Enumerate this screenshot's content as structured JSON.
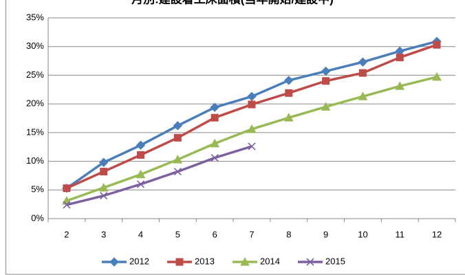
{
  "chart_data": {
    "type": "line",
    "title": "月別:建設着工床面積(当年開始/建設中)",
    "categories": [
      "2",
      "3",
      "4",
      "5",
      "6",
      "7",
      "8",
      "9",
      "10",
      "11",
      "12"
    ],
    "series": [
      {
        "name": "2012",
        "color": "#4a7ebb",
        "marker": "diamond",
        "values": [
          5.3,
          9.8,
          12.8,
          16.2,
          19.4,
          21.3,
          24.1,
          25.7,
          27.3,
          29.2,
          30.9
        ]
      },
      {
        "name": "2013",
        "color": "#be4b48",
        "marker": "square",
        "values": [
          5.3,
          8.2,
          11.1,
          14.1,
          17.6,
          19.9,
          21.9,
          24.0,
          25.4,
          28.1,
          30.3
        ]
      },
      {
        "name": "2014",
        "color": "#98b954",
        "marker": "triangle",
        "values": [
          3.1,
          5.4,
          7.7,
          10.3,
          13.1,
          15.6,
          17.6,
          19.5,
          21.3,
          23.1,
          24.7
        ]
      },
      {
        "name": "2015",
        "color": "#7d60a0",
        "marker": "x",
        "values": [
          2.4,
          4.0,
          6.0,
          8.2,
          10.6,
          12.6,
          null,
          null,
          null,
          null,
          null
        ]
      }
    ],
    "ylim": [
      0,
      35
    ],
    "yticks": [
      {
        "value": 0,
        "label": "0%"
      },
      {
        "value": 5,
        "label": "5%"
      },
      {
        "value": 10,
        "label": "10%"
      },
      {
        "value": 15,
        "label": "15%"
      },
      {
        "value": 20,
        "label": "20%"
      },
      {
        "value": 25,
        "label": "25%"
      },
      {
        "value": 30,
        "label": "30%"
      },
      {
        "value": 35,
        "label": "35%"
      }
    ],
    "grid": true,
    "legend": "bottom"
  }
}
